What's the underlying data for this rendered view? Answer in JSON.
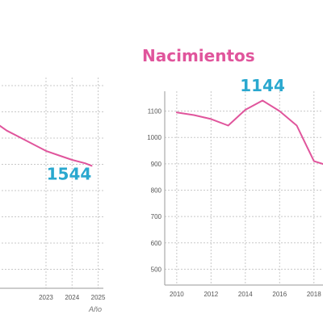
{
  "colors": {
    "line": "#e0559c",
    "title": "#e0559c",
    "callout": "#2aa8cf",
    "grid": "#c8c8c8",
    "tick": "#555555"
  },
  "chart_data": [
    {
      "type": "line",
      "title": "",
      "xlabel": "Año",
      "ylabel": "",
      "x_ticks": [
        2023,
        2024,
        2025
      ],
      "x_tick_labels": [
        "2023",
        "2024",
        "2025"
      ],
      "xlim": [
        2021.05,
        2025.2
      ],
      "ylim": [
        1000,
        1900
      ],
      "grid": true,
      "series": [
        {
          "x": [
            2021.0,
            2021.5,
            2022.0,
            2022.5,
            2023.0,
            2023.5,
            2024.0,
            2024.5,
            2024.75
          ],
          "y": [
            1740,
            1700,
            1670,
            1640,
            1610,
            1590,
            1570,
            1555,
            1544
          ]
        }
      ],
      "annotation": {
        "text": "1544",
        "x": 2024.75,
        "y": 1544
      }
    },
    {
      "type": "line",
      "title": "Nacimientos",
      "xlabel": "",
      "ylabel": "",
      "x_ticks": [
        2010,
        2012,
        2014,
        2016,
        2018
      ],
      "x_tick_labels": [
        "2010",
        "2012",
        "2014",
        "2016",
        "2018"
      ],
      "y_ticks": [
        500,
        600,
        700,
        800,
        900,
        1000,
        1100
      ],
      "y_tick_labels": [
        "500",
        "600",
        "700",
        "800",
        "900",
        "1000",
        "1100"
      ],
      "xlim": [
        2009.3,
        2019.0
      ],
      "ylim": [
        440,
        1160
      ],
      "grid": true,
      "series": [
        {
          "x": [
            2010,
            2011,
            2012,
            2013,
            2014,
            2015,
            2016,
            2017,
            2018,
            2019
          ],
          "y": [
            1095,
            1085,
            1070,
            1045,
            1105,
            1140,
            1100,
            1045,
            910,
            890
          ]
        }
      ],
      "annotation": {
        "text": "1144",
        "x": 2015,
        "y": 1144
      }
    }
  ]
}
